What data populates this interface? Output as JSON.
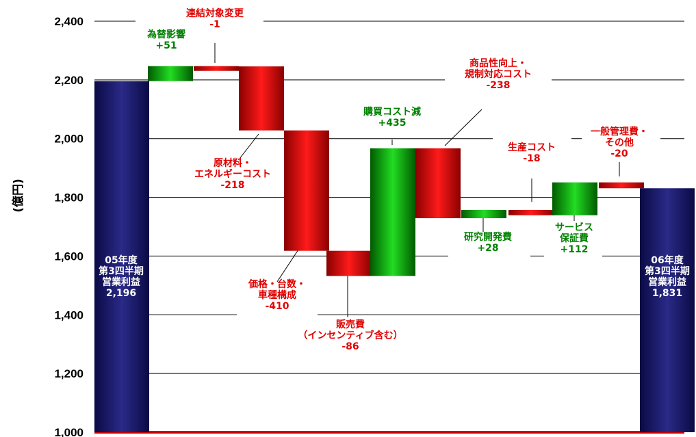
{
  "colors": {
    "increase": "#008000",
    "decrease": "#e00000",
    "total": "#1a1a6e",
    "grid": "#000000",
    "baseline": "#cc0000"
  },
  "chart_data": {
    "type": "bar",
    "subtype": "waterfall",
    "ylabel": "(億円)",
    "ylim": [
      1000,
      2400
    ],
    "yticks": [
      "1,000",
      "1,200",
      "1,400",
      "1,600",
      "1,800",
      "2,000",
      "2,200",
      "2,400"
    ],
    "grid": true,
    "steps": [
      {
        "kind": "total",
        "lines": [
          "05年度",
          "第3四半期",
          "営業利益",
          "2,196"
        ],
        "value": 2196
      },
      {
        "kind": "delta",
        "lines": [
          "為替影響",
          "+51"
        ],
        "value": 51
      },
      {
        "kind": "delta",
        "lines": [
          "連結対象変更",
          "-1"
        ],
        "value": -1
      },
      {
        "kind": "delta",
        "lines": [
          "原材料・",
          "エネルギーコスト",
          "-218"
        ],
        "value": -218
      },
      {
        "kind": "delta",
        "lines": [
          "価格・台数・",
          "車種構成",
          "-410"
        ],
        "value": -410
      },
      {
        "kind": "delta",
        "lines": [
          "販売費",
          "（インセンティブ含む）",
          "-86"
        ],
        "value": -86
      },
      {
        "kind": "delta",
        "lines": [
          "購買コスト減",
          "+435"
        ],
        "value": 435
      },
      {
        "kind": "delta",
        "lines": [
          "商品性向上・",
          "規制対応コスト",
          "-238"
        ],
        "value": -238
      },
      {
        "kind": "delta",
        "lines": [
          "研究開発費",
          "+28"
        ],
        "value": 28
      },
      {
        "kind": "delta",
        "lines": [
          "生産コスト",
          "-18"
        ],
        "value": -18
      },
      {
        "kind": "delta",
        "lines": [
          "サービス",
          "保証費",
          "+112"
        ],
        "value": 112
      },
      {
        "kind": "delta",
        "lines": [
          "一般管理費・",
          "その他",
          "-20"
        ],
        "value": -20
      },
      {
        "kind": "total",
        "lines": [
          "06年度",
          "第3四半期",
          "営業利益",
          "1,831"
        ],
        "value": 1831
      }
    ]
  }
}
